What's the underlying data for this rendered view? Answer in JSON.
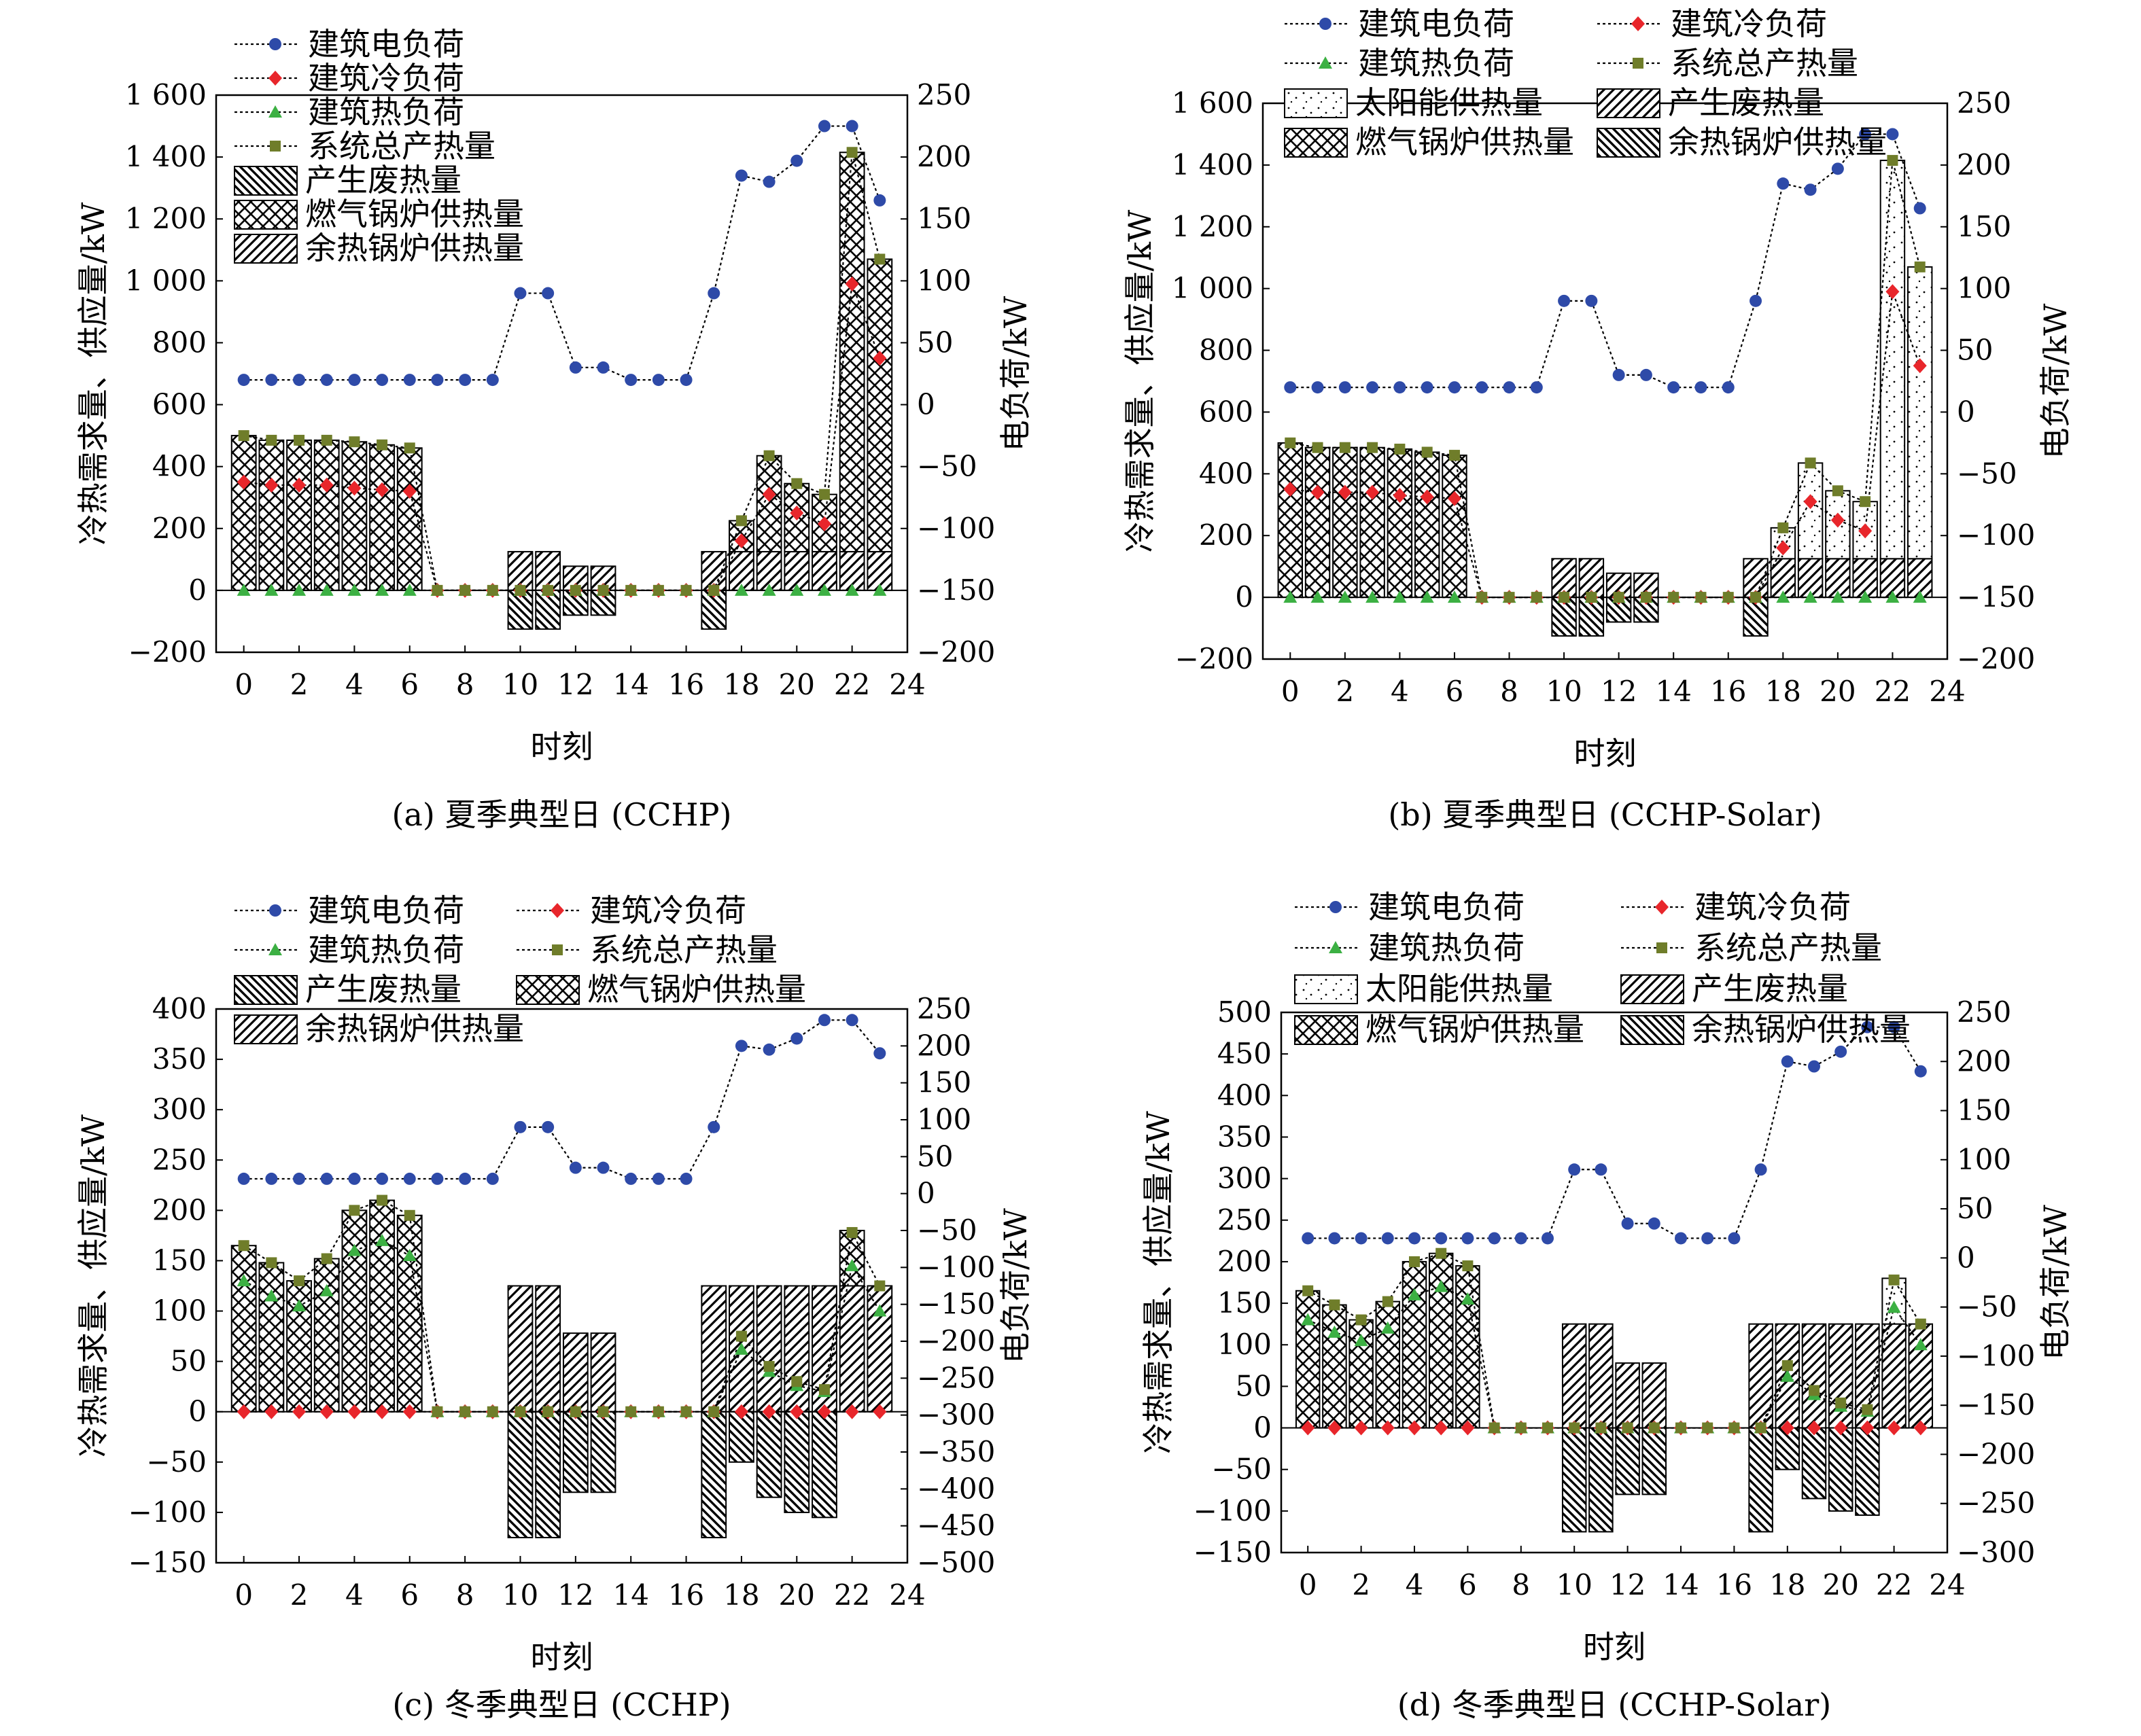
{
  "colors": {
    "elec": "#2e4aa8",
    "cool": "#e8262b",
    "heat": "#3cb043",
    "total": "#6f7d2a"
  },
  "chart_data": [
    {
      "type": "bar",
      "caption": "(a) 夏季典型日 (CCHP)",
      "xlabel": "时刻",
      "ylabel": "冷热需求量、供应量/kW",
      "y2label": "电负荷/kW",
      "ylim": [
        -200,
        1600
      ],
      "yticks": [
        -200,
        0,
        200,
        400,
        600,
        800,
        1000,
        1200,
        1400,
        1600
      ],
      "yticklabels": [
        "−200",
        "0",
        "200",
        "400",
        "600",
        "800",
        "1 000",
        "1 200",
        "1 400",
        "1 600"
      ],
      "y2lim": [
        -200,
        250
      ],
      "y2ticks": [
        -200,
        -150,
        -100,
        -50,
        0,
        50,
        100,
        150,
        200,
        250
      ],
      "y2ticklabels": [
        "−200",
        "−150",
        "−100",
        "−50",
        "0",
        "50",
        "100",
        "150",
        "200",
        "250"
      ],
      "xlim": [
        -1,
        24
      ],
      "xticks": [
        0,
        2,
        4,
        6,
        8,
        10,
        12,
        14,
        16,
        18,
        20,
        22,
        24
      ],
      "legend_position": "top-left",
      "legend": [
        {
          "label": "建筑电负荷",
          "kind": "line",
          "key": "elec"
        },
        {
          "label": "建筑冷负荷",
          "kind": "line",
          "key": "cool"
        },
        {
          "label": "建筑热负荷",
          "kind": "line",
          "key": "heat"
        },
        {
          "label": "系统总产热量",
          "kind": "line",
          "key": "total"
        },
        {
          "label": "产生废热量",
          "kind": "bar",
          "key": "waste"
        },
        {
          "label": "燃气锅炉供热量",
          "kind": "bar",
          "key": "gas"
        },
        {
          "label": "余热锅炉供热量",
          "kind": "bar",
          "key": "rec"
        }
      ],
      "stack": {
        "rec": [
          0,
          0,
          0,
          0,
          0,
          0,
          0,
          0,
          0,
          0,
          125,
          125,
          78,
          78,
          0,
          0,
          0,
          125,
          125,
          125,
          125,
          125,
          125,
          125
        ],
        "gas": [
          500,
          485,
          485,
          485,
          480,
          470,
          460,
          0,
          0,
          0,
          0,
          0,
          0,
          0,
          0,
          0,
          0,
          0,
          100,
          310,
          220,
          185,
          1290,
          945
        ],
        "solar": null
      },
      "waste": [
        0,
        0,
        0,
        0,
        0,
        0,
        0,
        0,
        0,
        0,
        -125,
        -125,
        -80,
        -80,
        0,
        0,
        0,
        -125,
        0,
        0,
        0,
        0,
        0,
        0
      ],
      "lines": {
        "elec": [
          20,
          20,
          20,
          20,
          20,
          20,
          20,
          20,
          20,
          20,
          90,
          90,
          30,
          30,
          20,
          20,
          20,
          90,
          185,
          180,
          197,
          225,
          225,
          165
        ],
        "cool": [
          350,
          340,
          340,
          340,
          330,
          325,
          320,
          0,
          0,
          0,
          0,
          0,
          0,
          0,
          0,
          0,
          0,
          0,
          160,
          310,
          250,
          215,
          990,
          750
        ],
        "heat": [
          0,
          0,
          0,
          0,
          0,
          0,
          0,
          0,
          0,
          0,
          0,
          0,
          0,
          0,
          0,
          0,
          0,
          0,
          0,
          0,
          0,
          0,
          0,
          0
        ],
        "total": [
          500,
          485,
          485,
          485,
          480,
          470,
          460,
          0,
          0,
          0,
          0,
          0,
          0,
          0,
          0,
          0,
          0,
          0,
          225,
          435,
          345,
          310,
          1415,
          1070
        ]
      }
    },
    {
      "type": "bar",
      "caption": "(b) 夏季典型日 (CCHP-Solar)",
      "xlabel": "时刻",
      "ylabel": "冷热需求量、供应量/kW",
      "y2label": "电负荷/kW",
      "ylim": [
        -200,
        1600
      ],
      "yticks": [
        -200,
        0,
        200,
        400,
        600,
        800,
        1000,
        1200,
        1400,
        1600
      ],
      "yticklabels": [
        "−200",
        "0",
        "200",
        "400",
        "600",
        "800",
        "1 000",
        "1 200",
        "1 400",
        "1 600"
      ],
      "y2lim": [
        -200,
        250
      ],
      "y2ticks": [
        -200,
        -150,
        -100,
        -50,
        0,
        50,
        100,
        150,
        200,
        250
      ],
      "y2ticklabels": [
        "−200",
        "−150",
        "−100",
        "−50",
        "0",
        "50",
        "100",
        "150",
        "200",
        "250"
      ],
      "xlim": [
        -1,
        24
      ],
      "xticks": [
        0,
        2,
        4,
        6,
        8,
        10,
        12,
        14,
        16,
        18,
        20,
        22,
        24
      ],
      "legend_position": "top-left",
      "legend": [
        {
          "label": "建筑电负荷",
          "kind": "line",
          "key": "elec"
        },
        {
          "label": "建筑冷负荷",
          "kind": "line",
          "key": "cool"
        },
        {
          "label": "建筑热负荷",
          "kind": "line",
          "key": "heat"
        },
        {
          "label": "系统总产热量",
          "kind": "line",
          "key": "total"
        },
        {
          "label": "太阳能供热量",
          "kind": "bar",
          "key": "solar"
        },
        {
          "label": "产生废热量",
          "kind": "bar",
          "key": "rec"
        },
        {
          "label": "燃气锅炉供热量",
          "kind": "bar",
          "key": "gas"
        },
        {
          "label": "余热锅炉供热量",
          "kind": "bar",
          "key": "waste"
        }
      ],
      "stack": {
        "rec": [
          0,
          0,
          0,
          0,
          0,
          0,
          0,
          0,
          0,
          0,
          125,
          125,
          78,
          78,
          0,
          0,
          0,
          125,
          125,
          125,
          125,
          125,
          125,
          125
        ],
        "gas": [
          500,
          485,
          485,
          485,
          480,
          470,
          460,
          0,
          0,
          0,
          0,
          0,
          0,
          0,
          0,
          0,
          0,
          0,
          0,
          0,
          0,
          0,
          0,
          0
        ],
        "solar": [
          0,
          0,
          0,
          0,
          0,
          0,
          0,
          0,
          0,
          0,
          0,
          0,
          0,
          0,
          0,
          0,
          0,
          0,
          100,
          310,
          220,
          185,
          1290,
          945
        ]
      },
      "waste": [
        0,
        0,
        0,
        0,
        0,
        0,
        0,
        0,
        0,
        0,
        -125,
        -125,
        -80,
        -80,
        0,
        0,
        0,
        -125,
        0,
        0,
        0,
        0,
        0,
        0
      ],
      "lines": {
        "elec": [
          20,
          20,
          20,
          20,
          20,
          20,
          20,
          20,
          20,
          20,
          90,
          90,
          30,
          30,
          20,
          20,
          20,
          90,
          185,
          180,
          197,
          225,
          225,
          165
        ],
        "cool": [
          350,
          340,
          340,
          340,
          330,
          325,
          320,
          0,
          0,
          0,
          0,
          0,
          0,
          0,
          0,
          0,
          0,
          0,
          160,
          310,
          250,
          215,
          990,
          750
        ],
        "heat": [
          0,
          0,
          0,
          0,
          0,
          0,
          0,
          0,
          0,
          0,
          0,
          0,
          0,
          0,
          0,
          0,
          0,
          0,
          0,
          0,
          0,
          0,
          0,
          0
        ],
        "total": [
          500,
          485,
          485,
          485,
          480,
          470,
          460,
          0,
          0,
          0,
          0,
          0,
          0,
          0,
          0,
          0,
          0,
          0,
          225,
          435,
          345,
          310,
          1415,
          1070
        ]
      }
    },
    {
      "type": "bar",
      "caption": "(c) 冬季典型日 (CCHP)",
      "xlabel": "时刻",
      "ylabel": "冷热需求量、供应量/kW",
      "y2label": "电负荷/kW",
      "ylim": [
        -150,
        400
      ],
      "yticks": [
        -150,
        -100,
        -50,
        0,
        50,
        100,
        150,
        200,
        250,
        300,
        350,
        400
      ],
      "yticklabels": [
        "−150",
        "−100",
        "−50",
        "0",
        "50",
        "100",
        "150",
        "200",
        "250",
        "300",
        "350",
        "400"
      ],
      "y2lim": [
        -500,
        250
      ],
      "y2ticks": [
        -500,
        -450,
        -400,
        -350,
        -300,
        -250,
        -200,
        -150,
        -100,
        -50,
        0,
        50,
        100,
        150,
        200,
        250
      ],
      "y2ticklabels": [
        "−500",
        "−450",
        "−400",
        "−350",
        "−300",
        "−250",
        "−200",
        "−150",
        "−100",
        "−50",
        "0",
        "50",
        "100",
        "150",
        "200",
        "250"
      ],
      "xlim": [
        -1,
        24
      ],
      "xticks": [
        0,
        2,
        4,
        6,
        8,
        10,
        12,
        14,
        16,
        18,
        20,
        22,
        24
      ],
      "legend_position": "top-left",
      "legend": [
        {
          "label": "建筑电负荷",
          "kind": "line",
          "key": "elec"
        },
        {
          "label": "建筑冷负荷",
          "kind": "line",
          "key": "cool"
        },
        {
          "label": "建筑热负荷",
          "kind": "line",
          "key": "heat"
        },
        {
          "label": "系统总产热量",
          "kind": "line",
          "key": "total"
        },
        {
          "label": "产生废热量",
          "kind": "bar",
          "key": "waste"
        },
        {
          "label": "燃气锅炉供热量",
          "kind": "bar",
          "key": "gas"
        },
        {
          "label": "余热锅炉供热量",
          "kind": "bar",
          "key": "rec"
        }
      ],
      "stack": {
        "rec": [
          0,
          0,
          0,
          0,
          0,
          0,
          0,
          0,
          0,
          0,
          125,
          125,
          78,
          78,
          0,
          0,
          0,
          125,
          125,
          125,
          125,
          125,
          125,
          125
        ],
        "gas": [
          165,
          148,
          130,
          152,
          200,
          210,
          195,
          0,
          0,
          0,
          0,
          0,
          0,
          0,
          0,
          0,
          0,
          0,
          0,
          0,
          0,
          0,
          55,
          0
        ],
        "solar": null
      },
      "waste": [
        0,
        0,
        0,
        0,
        0,
        0,
        0,
        0,
        0,
        0,
        -125,
        -125,
        -80,
        -80,
        0,
        0,
        0,
        -125,
        -50,
        -85,
        -100,
        -105,
        0,
        0
      ],
      "lines": {
        "elec": [
          20,
          20,
          20,
          20,
          20,
          20,
          20,
          20,
          20,
          20,
          90,
          90,
          35,
          35,
          20,
          20,
          20,
          90,
          200,
          195,
          210,
          235,
          235,
          190
        ],
        "cool": [
          0,
          0,
          0,
          0,
          0,
          0,
          0,
          0,
          0,
          0,
          0,
          0,
          0,
          0,
          0,
          0,
          0,
          0,
          0,
          0,
          0,
          0,
          0,
          0
        ],
        "heat": [
          130,
          115,
          105,
          120,
          160,
          170,
          155,
          0,
          0,
          0,
          0,
          0,
          0,
          0,
          0,
          0,
          0,
          0,
          62,
          40,
          26,
          20,
          145,
          100
        ],
        "total": [
          165,
          148,
          130,
          152,
          200,
          210,
          195,
          0,
          0,
          0,
          0,
          0,
          0,
          0,
          0,
          0,
          0,
          0,
          75,
          45,
          30,
          22,
          178,
          125
        ]
      }
    },
    {
      "type": "bar",
      "caption": "(d) 冬季典型日 (CCHP-Solar)",
      "xlabel": "时刻",
      "ylabel": "冷热需求量、供应量/kW",
      "y2label": "电负荷/kW",
      "ylim": [
        -150,
        500
      ],
      "yticks": [
        -150,
        -100,
        -50,
        0,
        50,
        100,
        150,
        200,
        250,
        300,
        350,
        400,
        450,
        500
      ],
      "yticklabels": [
        "−150",
        "−100",
        "−50",
        "0",
        "50",
        "100",
        "150",
        "200",
        "250",
        "300",
        "350",
        "400",
        "450",
        "500"
      ],
      "y2lim": [
        -300,
        250
      ],
      "y2ticks": [
        -300,
        -250,
        -200,
        -150,
        -100,
        -50,
        0,
        50,
        100,
        150,
        200,
        250
      ],
      "y2ticklabels": [
        "−300",
        "−250",
        "−200",
        "−150",
        "−100",
        "−50",
        "0",
        "50",
        "100",
        "150",
        "200",
        "250"
      ],
      "xlim": [
        -1,
        24
      ],
      "xticks": [
        0,
        2,
        4,
        6,
        8,
        10,
        12,
        14,
        16,
        18,
        20,
        22,
        24
      ],
      "legend_position": "top-left",
      "legend": [
        {
          "label": "建筑电负荷",
          "kind": "line",
          "key": "elec"
        },
        {
          "label": "建筑冷负荷",
          "kind": "line",
          "key": "cool"
        },
        {
          "label": "建筑热负荷",
          "kind": "line",
          "key": "heat"
        },
        {
          "label": "系统总产热量",
          "kind": "line",
          "key": "total"
        },
        {
          "label": "太阳能供热量",
          "kind": "bar",
          "key": "solar"
        },
        {
          "label": "产生废热量",
          "kind": "bar",
          "key": "rec"
        },
        {
          "label": "燃气锅炉供热量",
          "kind": "bar",
          "key": "gas"
        },
        {
          "label": "余热锅炉供热量",
          "kind": "bar",
          "key": "waste"
        }
      ],
      "stack": {
        "rec": [
          0,
          0,
          0,
          0,
          0,
          0,
          0,
          0,
          0,
          0,
          125,
          125,
          78,
          78,
          0,
          0,
          0,
          125,
          125,
          125,
          125,
          125,
          125,
          125
        ],
        "gas": [
          165,
          148,
          130,
          152,
          200,
          210,
          195,
          0,
          0,
          0,
          0,
          0,
          0,
          0,
          0,
          0,
          0,
          0,
          0,
          0,
          0,
          0,
          0,
          0
        ],
        "solar": [
          0,
          0,
          0,
          0,
          0,
          0,
          0,
          0,
          0,
          0,
          0,
          0,
          0,
          0,
          0,
          0,
          0,
          0,
          0,
          0,
          0,
          0,
          55,
          0
        ]
      },
      "waste": [
        0,
        0,
        0,
        0,
        0,
        0,
        0,
        0,
        0,
        0,
        -125,
        -125,
        -80,
        -80,
        0,
        0,
        0,
        -125,
        -50,
        -85,
        -100,
        -105,
        0,
        0
      ],
      "lines": {
        "elec": [
          20,
          20,
          20,
          20,
          20,
          20,
          20,
          20,
          20,
          20,
          90,
          90,
          35,
          35,
          20,
          20,
          20,
          90,
          200,
          195,
          210,
          235,
          235,
          190
        ],
        "cool": [
          0,
          0,
          0,
          0,
          0,
          0,
          0,
          0,
          0,
          0,
          0,
          0,
          0,
          0,
          0,
          0,
          0,
          0,
          0,
          0,
          0,
          0,
          0,
          0
        ],
        "heat": [
          130,
          115,
          105,
          120,
          160,
          170,
          155,
          0,
          0,
          0,
          0,
          0,
          0,
          0,
          0,
          0,
          0,
          0,
          62,
          40,
          26,
          20,
          145,
          100
        ],
        "total": [
          165,
          148,
          130,
          152,
          200,
          210,
          195,
          0,
          0,
          0,
          0,
          0,
          0,
          0,
          0,
          0,
          0,
          0,
          75,
          45,
          30,
          22,
          178,
          125
        ]
      }
    }
  ]
}
